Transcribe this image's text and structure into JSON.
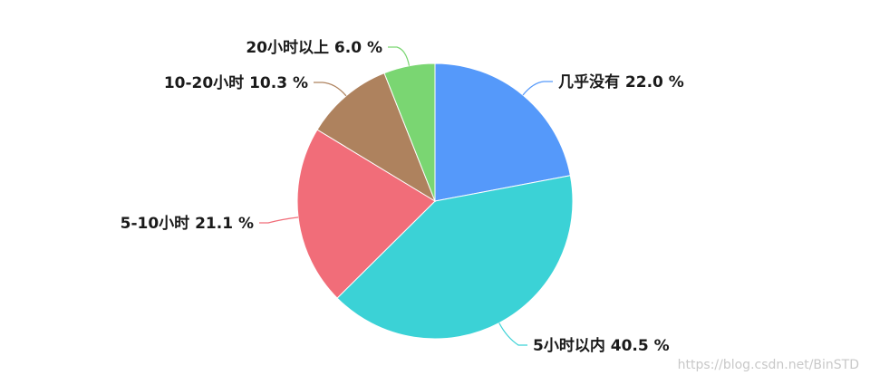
{
  "chart_data": {
    "type": "pie",
    "title": "",
    "slices": [
      {
        "label": "几乎没有",
        "value": 22.0,
        "display": "几乎没有 22.0 %",
        "color": "#5599fa"
      },
      {
        "label": "5小时以内",
        "value": 40.5,
        "display": "5小时以内 40.5 %",
        "color": "#3bd2d6"
      },
      {
        "label": "5-10小时",
        "value": 21.1,
        "display": "5-10小时 21.1 %",
        "color": "#f16d79"
      },
      {
        "label": "10-20小时",
        "value": 10.3,
        "display": "10-20小时 10.3 %",
        "color": "#ae825e"
      },
      {
        "label": "20小时以上",
        "value": 6.0,
        "display": "20小时以上 6.0 %",
        "color": "#7ad672"
      }
    ],
    "start_angle": "12 o'clock",
    "direction": "clockwise",
    "legend": "none"
  },
  "watermark": "https://blog.csdn.net/BinSTD"
}
